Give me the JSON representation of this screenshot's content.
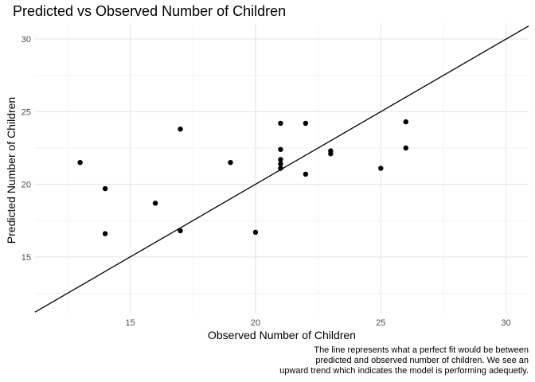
{
  "chart_data": {
    "type": "scatter",
    "title": "Predicted vs Observed Number of Children",
    "xlabel": "Observed Number of Children",
    "ylabel": "Predicted Number of Children",
    "xlim": [
      11.2,
      30.9
    ],
    "ylim": [
      11.1,
      31.1
    ],
    "x_ticks": [
      15,
      20,
      25,
      30
    ],
    "y_ticks": [
      15,
      20,
      25,
      30
    ],
    "grid": true,
    "reference_line": {
      "slope": 1,
      "intercept": 0
    },
    "caption": [
      "The line represents what a perfect fit would be between",
      "predicted and observed number of children. We see an",
      "upward trend which indicates the model is performing adequetly."
    ],
    "points": [
      {
        "x": 13,
        "y": 21.5
      },
      {
        "x": 14,
        "y": 19.7
      },
      {
        "x": 14,
        "y": 16.6
      },
      {
        "x": 16,
        "y": 18.7
      },
      {
        "x": 17,
        "y": 23.8
      },
      {
        "x": 17,
        "y": 16.8
      },
      {
        "x": 19,
        "y": 21.5
      },
      {
        "x": 20,
        "y": 16.7
      },
      {
        "x": 21,
        "y": 24.2
      },
      {
        "x": 21,
        "y": 22.4
      },
      {
        "x": 21,
        "y": 21.7
      },
      {
        "x": 21,
        "y": 21.4
      },
      {
        "x": 21,
        "y": 21.1
      },
      {
        "x": 22,
        "y": 24.2
      },
      {
        "x": 22,
        "y": 20.7
      },
      {
        "x": 23,
        "y": 22.3
      },
      {
        "x": 23,
        "y": 22.1
      },
      {
        "x": 25,
        "y": 21.1
      },
      {
        "x": 26,
        "y": 24.3
      },
      {
        "x": 26,
        "y": 22.5
      }
    ]
  }
}
